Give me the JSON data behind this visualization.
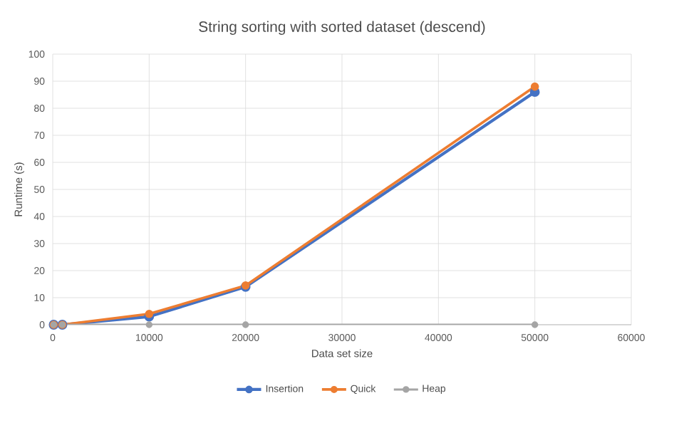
{
  "chart_data": {
    "type": "line",
    "title": "String sorting with sorted dataset (descend)",
    "xlabel": "Data set size",
    "ylabel": "Runtime (s)",
    "x": [
      100,
      1000,
      10000,
      20000,
      50000
    ],
    "series": [
      {
        "name": "Insertion",
        "color": "#4472c4",
        "values": [
          0,
          0,
          3,
          14,
          86
        ]
      },
      {
        "name": "Quick",
        "color": "#ed7d31",
        "values": [
          0,
          0,
          4,
          14.5,
          88
        ]
      },
      {
        "name": "Heap",
        "color": "#a5a5a5",
        "values": [
          0,
          0,
          0,
          0,
          0
        ]
      }
    ],
    "xlim": [
      0,
      60000
    ],
    "xticks": [
      0,
      10000,
      20000,
      30000,
      40000,
      50000,
      60000
    ],
    "ylim": [
      0,
      100
    ],
    "yticks": [
      0,
      10,
      20,
      30,
      40,
      50,
      60,
      70,
      80,
      90,
      100
    ],
    "grid": true,
    "legend": "bottom",
    "marker": "circle",
    "line_style": "solid"
  }
}
